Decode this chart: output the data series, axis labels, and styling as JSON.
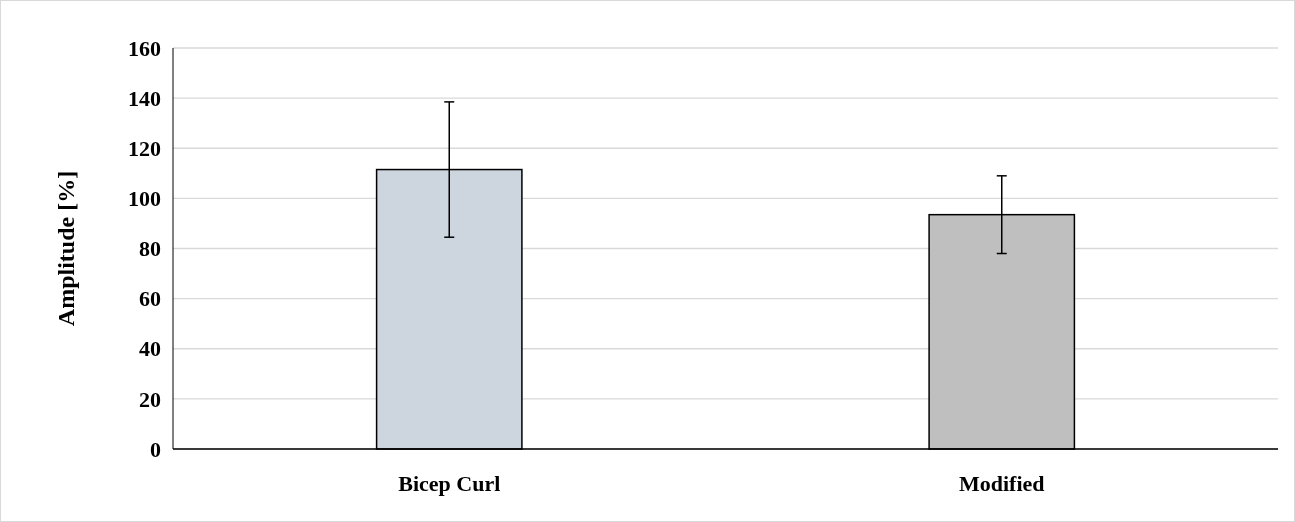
{
  "chart_data": {
    "type": "bar",
    "ylabel": "Amplitude [%]",
    "categories": [
      "Bicep Curl",
      "Modified"
    ],
    "values": [
      111.5,
      93.5
    ],
    "colors": [
      "#cdd5df",
      "#bfbfbf"
    ],
    "errors": [
      27,
      15.5
    ],
    "ylim": [
      0,
      160
    ],
    "yticks": [
      0,
      20,
      40,
      60,
      80,
      100,
      120,
      140,
      160
    ],
    "grid": "y"
  }
}
